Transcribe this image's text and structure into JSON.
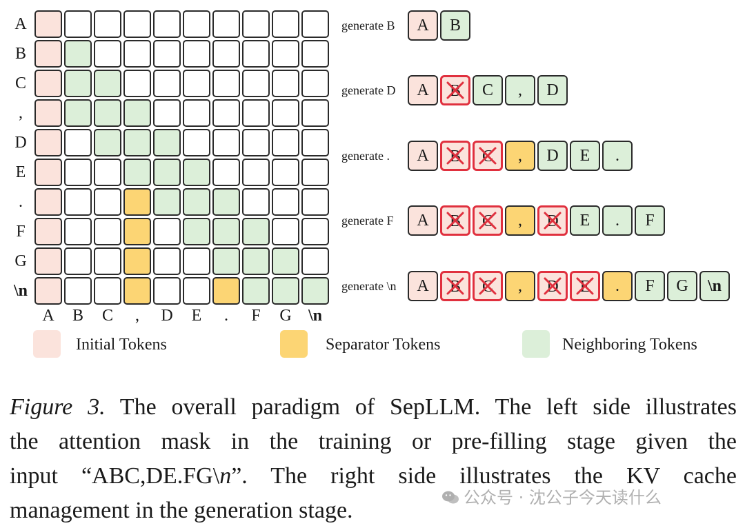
{
  "matrix": {
    "row_labels": [
      "A",
      "B",
      "C",
      ",",
      "D",
      "E",
      ".",
      "F",
      "G",
      "\\n"
    ],
    "col_labels": [
      "A",
      "B",
      "C",
      ",",
      "D",
      "E",
      ".",
      "F",
      "G",
      "\\n"
    ],
    "cells": [
      "I.........",
      "IN........",
      "INN.......",
      "INNN......",
      "I.NNN.....",
      "I..NNN....",
      "I..SNNN...",
      "I..S.NNN..",
      "I..S..NNN.",
      "I..S..SNNN"
    ]
  },
  "generation": [
    {
      "label": "generate B",
      "tokens": [
        {
          "t": "A",
          "k": "initial"
        },
        {
          "t": "B",
          "k": "neighbor"
        }
      ]
    },
    {
      "label": "generate D",
      "tokens": [
        {
          "t": "A",
          "k": "initial"
        },
        {
          "t": "B",
          "k": "evicted"
        },
        {
          "t": "C",
          "k": "neighbor"
        },
        {
          "t": ",",
          "k": "neighbor"
        },
        {
          "t": "D",
          "k": "neighbor"
        }
      ]
    },
    {
      "label": "generate .",
      "tokens": [
        {
          "t": "A",
          "k": "initial"
        },
        {
          "t": "B",
          "k": "evicted"
        },
        {
          "t": "C",
          "k": "evicted"
        },
        {
          "t": ",",
          "k": "separator"
        },
        {
          "t": "D",
          "k": "neighbor"
        },
        {
          "t": "E",
          "k": "neighbor"
        },
        {
          "t": ".",
          "k": "neighbor"
        }
      ]
    },
    {
      "label": "generate F",
      "tokens": [
        {
          "t": "A",
          "k": "initial"
        },
        {
          "t": "B",
          "k": "evicted"
        },
        {
          "t": "C",
          "k": "evicted"
        },
        {
          "t": ",",
          "k": "separator"
        },
        {
          "t": "D",
          "k": "evicted"
        },
        {
          "t": "E",
          "k": "neighbor"
        },
        {
          "t": ".",
          "k": "neighbor"
        },
        {
          "t": "F",
          "k": "neighbor"
        }
      ]
    },
    {
      "label": "generate \\n",
      "tokens": [
        {
          "t": "A",
          "k": "initial"
        },
        {
          "t": "B",
          "k": "evicted"
        },
        {
          "t": "C",
          "k": "evicted"
        },
        {
          "t": ",",
          "k": "separator"
        },
        {
          "t": "D",
          "k": "evicted"
        },
        {
          "t": "E",
          "k": "evicted"
        },
        {
          "t": ".",
          "k": "separator"
        },
        {
          "t": "F",
          "k": "neighbor"
        },
        {
          "t": "G",
          "k": "neighbor"
        },
        {
          "t": "\\n",
          "k": "neighbor"
        }
      ]
    }
  ],
  "legend": [
    {
      "label": "Initial Tokens",
      "color": "#fbe3dc"
    },
    {
      "label": "Separator Tokens",
      "color": "#fcd574"
    },
    {
      "label": "Neighboring Tokens",
      "color": "#dcefd9"
    }
  ],
  "colors": {
    "initial": "#fbe3dc",
    "separator": "#fcd574",
    "neighbor": "#dcefd9",
    "evicted": "#fbe3dc",
    "evicted_mark": "#e0303e",
    "empty": "#ffffff"
  },
  "caption": {
    "figure_label": "Figure 3.",
    "line1": "The overall paradigm of SepLLM. The left side illustrates",
    "line2": "the attention mask in the training or pre-filling stage given the",
    "line3_a": "input “ABC,DE.FG",
    "line3_b": "\\",
    "line3_c": "n",
    "line3_d": "”. The right side illustrates the KV cache",
    "line4": "management in the generation stage."
  },
  "watermark": "公众号 · 沈公子今天读什么"
}
